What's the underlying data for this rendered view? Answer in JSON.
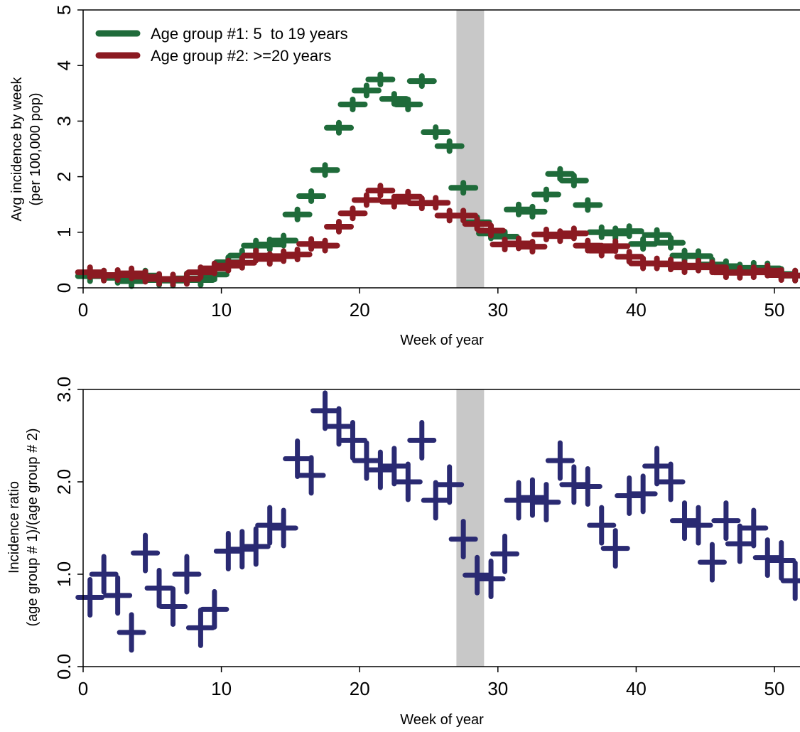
{
  "chart_data": [
    {
      "type": "scatter",
      "xlabel": "Week of year",
      "ylabel": "Avg incidence by week",
      "ylabel2": "(per 100,000 pop)",
      "xlim": [
        0,
        52
      ],
      "ylim": [
        0,
        5
      ],
      "xticks": [
        0,
        10,
        20,
        30,
        40,
        50
      ],
      "xtick_labels": [
        "0",
        "10",
        "20",
        "30",
        "40",
        "50"
      ],
      "yticks": [
        0,
        1,
        2,
        3,
        4,
        5
      ],
      "ytick_labels": [
        "0",
        "1",
        "2",
        "3",
        "4",
        "5"
      ],
      "grid": false,
      "legend_position": "top-left",
      "shaded_band": [
        27,
        29
      ],
      "shaded_color": "#c8c8c8",
      "series": [
        {
          "name": "Age group #1: 5  to 19 years",
          "color": "#1f6b3a",
          "x": [
            0.5,
            1.5,
            2.5,
            3.5,
            4.5,
            5.5,
            6.5,
            7.5,
            8.5,
            9.5,
            10.5,
            11.5,
            12.5,
            13.5,
            14.5,
            15.5,
            16.5,
            17.5,
            18.5,
            19.5,
            20.5,
            21.5,
            22.5,
            23.5,
            24.5,
            25.5,
            26.5,
            27.5,
            28.5,
            29.5,
            30.5,
            31.5,
            32.5,
            33.5,
            34.5,
            35.5,
            36.5,
            37.5,
            38.5,
            39.5,
            40.5,
            41.5,
            42.5,
            43.5,
            44.5,
            45.5,
            46.5,
            47.5,
            48.5,
            49.5,
            50.5,
            51.5
          ],
          "y": [
            0.21,
            0.22,
            0.18,
            0.12,
            0.22,
            0.14,
            0.13,
            0.17,
            0.14,
            0.24,
            0.46,
            0.58,
            0.76,
            0.78,
            0.85,
            1.32,
            1.65,
            2.12,
            2.88,
            3.3,
            3.55,
            3.75,
            3.4,
            3.3,
            3.72,
            2.8,
            2.55,
            1.8,
            1.18,
            0.98,
            0.92,
            1.41,
            1.37,
            1.68,
            2.05,
            1.93,
            1.49,
            1.0,
            0.98,
            1.02,
            0.79,
            0.95,
            0.81,
            0.58,
            0.57,
            0.42,
            0.39,
            0.33,
            0.36,
            0.35,
            0.25,
            0.22
          ]
        },
        {
          "name": "Age group #2: >=20 years",
          "color": "#8b1a22",
          "x": [
            0.5,
            1.5,
            2.5,
            3.5,
            4.5,
            5.5,
            6.5,
            7.5,
            8.5,
            9.5,
            10.5,
            11.5,
            12.5,
            13.5,
            14.5,
            15.5,
            16.5,
            17.5,
            18.5,
            19.5,
            20.5,
            21.5,
            22.5,
            23.5,
            24.5,
            25.5,
            26.5,
            27.5,
            28.5,
            29.5,
            30.5,
            31.5,
            32.5,
            33.5,
            34.5,
            35.5,
            36.5,
            37.5,
            38.5,
            39.5,
            40.5,
            41.5,
            42.5,
            43.5,
            44.5,
            45.5,
            46.5,
            47.5,
            48.5,
            49.5,
            50.5,
            51.5
          ],
          "y": [
            0.28,
            0.22,
            0.23,
            0.26,
            0.2,
            0.16,
            0.15,
            0.16,
            0.28,
            0.35,
            0.4,
            0.45,
            0.58,
            0.52,
            0.57,
            0.6,
            0.79,
            0.76,
            1.1,
            1.34,
            1.58,
            1.75,
            1.55,
            1.64,
            1.52,
            1.53,
            1.3,
            1.3,
            1.15,
            1.03,
            0.78,
            0.8,
            0.74,
            0.96,
            0.93,
            0.98,
            0.76,
            0.67,
            0.75,
            0.56,
            0.44,
            0.44,
            0.42,
            0.37,
            0.4,
            0.37,
            0.28,
            0.27,
            0.28,
            0.31,
            0.23,
            0.22
          ]
        }
      ]
    },
    {
      "type": "scatter",
      "xlabel": "Week of year",
      "ylabel": "Incidence ratio",
      "ylabel2": "(age group # 1)/(age group # 2)",
      "xlim": [
        0,
        52
      ],
      "ylim": [
        0,
        3
      ],
      "xticks": [
        0,
        10,
        20,
        30,
        40,
        50
      ],
      "xtick_labels": [
        "0",
        "10",
        "20",
        "30",
        "40",
        "50"
      ],
      "yticks": [
        0,
        1,
        2,
        3
      ],
      "ytick_labels": [
        "0.0",
        "1.0",
        "2.0",
        "3.0"
      ],
      "grid": false,
      "shaded_band": [
        27,
        29
      ],
      "shaded_color": "#c8c8c8",
      "series": [
        {
          "color": "#2a2a72",
          "x": [
            0.5,
            1.5,
            2.5,
            3.5,
            4.5,
            5.5,
            6.5,
            7.5,
            8.5,
            9.5,
            10.5,
            11.5,
            12.5,
            13.5,
            14.5,
            15.5,
            16.5,
            17.5,
            18.5,
            19.5,
            20.5,
            21.5,
            22.5,
            23.5,
            24.5,
            25.5,
            26.5,
            27.5,
            28.5,
            29.5,
            30.5,
            31.5,
            32.5,
            33.5,
            34.5,
            35.5,
            36.5,
            37.5,
            38.5,
            39.5,
            40.5,
            41.5,
            42.5,
            43.5,
            44.5,
            45.5,
            46.5,
            47.5,
            48.5,
            49.5,
            50.5,
            51.5
          ],
          "y": [
            0.75,
            1.0,
            0.77,
            0.37,
            1.23,
            0.85,
            0.65,
            1.0,
            0.42,
            0.62,
            1.25,
            1.27,
            1.3,
            1.53,
            1.5,
            2.25,
            2.07,
            2.77,
            2.6,
            2.45,
            2.23,
            2.13,
            2.17,
            2.0,
            2.45,
            1.8,
            1.97,
            1.38,
            0.99,
            0.95,
            1.22,
            1.8,
            1.83,
            1.78,
            2.23,
            1.97,
            1.95,
            1.53,
            1.28,
            1.85,
            1.87,
            2.17,
            2.0,
            1.58,
            1.53,
            1.13,
            1.58,
            1.33,
            1.5,
            1.18,
            1.15,
            0.93
          ]
        }
      ]
    }
  ]
}
